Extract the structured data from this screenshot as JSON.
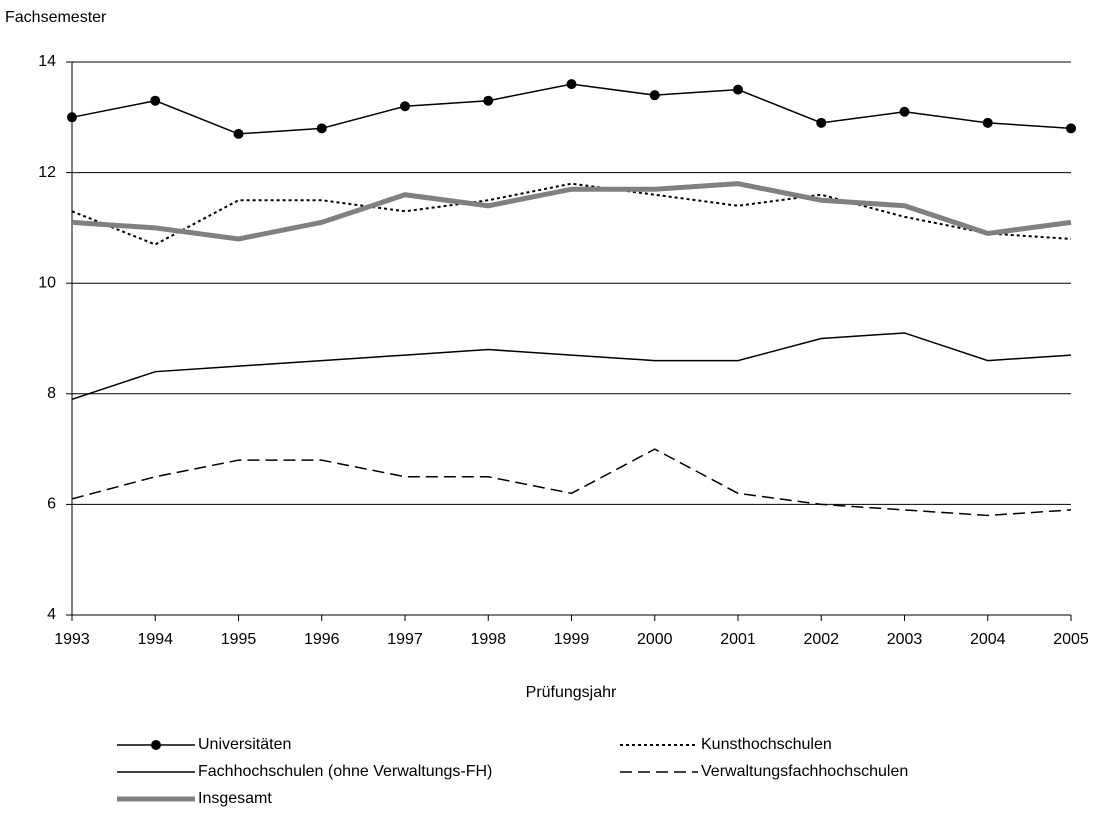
{
  "chart_data": {
    "type": "line",
    "ylabel": "Fachsemester",
    "xlabel": "Prüfungsjahr",
    "x": [
      1993,
      1994,
      1995,
      1996,
      1997,
      1998,
      1999,
      2000,
      2001,
      2002,
      2003,
      2004,
      2005
    ],
    "xlim": [
      1993,
      2005
    ],
    "xticks": [
      1993,
      1994,
      1995,
      1996,
      1997,
      1998,
      1999,
      2000,
      2001,
      2002,
      2003,
      2004,
      2005
    ],
    "ylim": [
      4,
      14
    ],
    "yticks": [
      4,
      6,
      8,
      10,
      12,
      14
    ],
    "grid": true,
    "series": [
      {
        "name": "Universitäten",
        "color": "#000000",
        "linestyle": "solid",
        "marker": "circle",
        "values": [
          13.0,
          13.3,
          12.7,
          12.8,
          13.2,
          13.3,
          13.6,
          13.4,
          13.5,
          12.9,
          13.1,
          12.9,
          12.8
        ]
      },
      {
        "name": "Kunsthochschulen",
        "color": "#000000",
        "linestyle": "dotted",
        "values": [
          11.3,
          10.7,
          11.5,
          11.5,
          11.3,
          11.5,
          11.8,
          11.6,
          11.4,
          11.6,
          11.2,
          10.9,
          10.8
        ]
      },
      {
        "name": "Fachhochschulen (ohne Verwaltungs-FH)",
        "color": "#000000",
        "linestyle": "solid",
        "values": [
          7.9,
          8.4,
          8.5,
          8.6,
          8.7,
          8.8,
          8.7,
          8.6,
          8.6,
          9.0,
          9.1,
          8.6,
          8.7
        ]
      },
      {
        "name": "Verwaltungsfachhochschulen",
        "color": "#000000",
        "linestyle": "dashed",
        "values": [
          6.1,
          6.5,
          6.8,
          6.8,
          6.5,
          6.5,
          6.2,
          7.0,
          6.2,
          6.0,
          5.9,
          5.8,
          5.9
        ]
      },
      {
        "name": "Insgesamt",
        "color": "#808080",
        "linestyle": "thick",
        "values": [
          11.1,
          11.0,
          10.8,
          11.1,
          11.6,
          11.4,
          11.7,
          11.7,
          11.8,
          11.5,
          11.4,
          10.9,
          11.1
        ]
      }
    ]
  }
}
